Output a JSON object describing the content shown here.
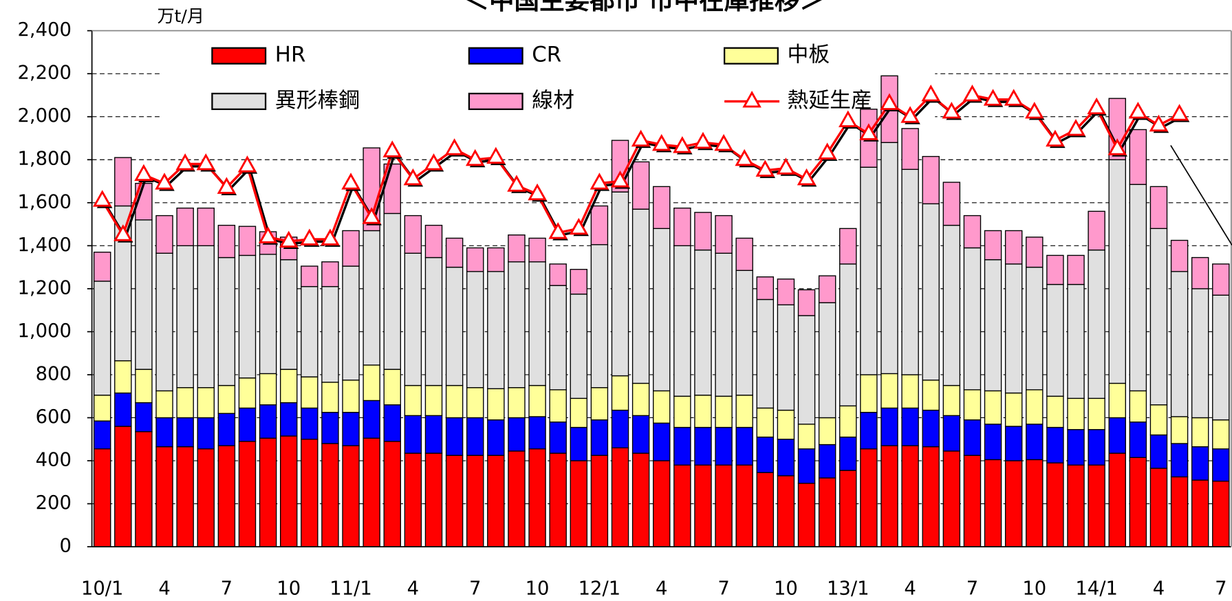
{
  "chart_data": {
    "type": "bar",
    "stacked": true,
    "title": "＜中国主要都市 市中在庫推移＞",
    "y_unit_label": "万t/月",
    "categories": [
      "10/1",
      null,
      null,
      "4",
      null,
      null,
      "7",
      null,
      null,
      "10",
      null,
      null,
      "11/1",
      null,
      null,
      "4",
      null,
      null,
      "7",
      null,
      null,
      "10",
      null,
      null,
      "12/1",
      null,
      null,
      "4",
      null,
      null,
      "7",
      null,
      null,
      "10",
      null,
      null,
      "13/1",
      null,
      null,
      "4",
      null,
      null,
      "7",
      null,
      null,
      "10",
      null,
      null,
      "14/1",
      null,
      null,
      "4",
      null,
      null,
      "7"
    ],
    "ylim": [
      0,
      2400
    ],
    "yticks": [
      0,
      200,
      400,
      600,
      800,
      {
        "value": 1000,
        "label": "1,000"
      },
      {
        "value": 1200,
        "label": "1,200"
      },
      {
        "value": 1400,
        "label": "1,400"
      },
      {
        "value": 1600,
        "label": "1,600"
      },
      {
        "value": 1800,
        "label": "1,800"
      },
      {
        "value": 2000,
        "label": "2,000"
      },
      {
        "value": 2200,
        "label": "2,200"
      },
      {
        "value": 2400,
        "label": "2,400"
      }
    ],
    "grid": true,
    "legend": "top",
    "series": [
      {
        "name": "HR",
        "color": "#ff0000",
        "values": [
          455,
          560,
          535,
          465,
          465,
          455,
          470,
          490,
          505,
          515,
          500,
          480,
          470,
          505,
          490,
          435,
          435,
          425,
          425,
          425,
          445,
          455,
          435,
          400,
          425,
          460,
          435,
          400,
          380,
          380,
          380,
          380,
          345,
          330,
          295,
          320,
          355,
          455,
          470,
          470,
          465,
          445,
          425,
          405,
          400,
          405,
          390,
          380,
          380,
          435,
          415,
          365,
          325,
          310,
          305
        ]
      },
      {
        "name": "CR",
        "color": "#0000ff",
        "values": [
          130,
          155,
          135,
          135,
          135,
          145,
          150,
          155,
          155,
          155,
          145,
          145,
          155,
          175,
          170,
          175,
          175,
          175,
          175,
          165,
          155,
          150,
          145,
          155,
          165,
          175,
          175,
          175,
          175,
          175,
          175,
          175,
          165,
          170,
          160,
          155,
          155,
          170,
          175,
          175,
          170,
          165,
          165,
          165,
          160,
          165,
          165,
          165,
          165,
          165,
          165,
          155,
          155,
          155,
          150
        ]
      },
      {
        "name": "中板",
        "color": "#ffff99",
        "values": [
          120,
          150,
          155,
          125,
          140,
          140,
          130,
          140,
          145,
          155,
          145,
          140,
          150,
          165,
          165,
          140,
          140,
          150,
          140,
          145,
          140,
          145,
          150,
          135,
          150,
          160,
          150,
          150,
          145,
          150,
          145,
          150,
          135,
          135,
          115,
          125,
          145,
          175,
          160,
          155,
          140,
          140,
          140,
          155,
          155,
          160,
          145,
          145,
          145,
          160,
          145,
          140,
          125,
          135,
          135
        ]
      },
      {
        "name": "異形棒鋼",
        "color": "#e0e0e0",
        "values": [
          530,
          720,
          695,
          640,
          660,
          660,
          595,
          570,
          555,
          510,
          420,
          445,
          530,
          625,
          725,
          615,
          595,
          550,
          540,
          545,
          585,
          575,
          485,
          485,
          665,
          855,
          810,
          755,
          700,
          675,
          665,
          580,
          505,
          490,
          505,
          535,
          660,
          965,
          1075,
          955,
          820,
          745,
          660,
          610,
          600,
          570,
          520,
          530,
          690,
          1040,
          960,
          820,
          675,
          600,
          580
        ]
      },
      {
        "name": "線材",
        "color": "#ff99cc",
        "values": [
          135,
          225,
          170,
          175,
          175,
          175,
          150,
          135,
          105,
          105,
          95,
          115,
          165,
          385,
          230,
          175,
          150,
          135,
          110,
          110,
          125,
          110,
          100,
          115,
          180,
          240,
          220,
          195,
          175,
          175,
          175,
          150,
          105,
          120,
          120,
          125,
          165,
          270,
          310,
          190,
          220,
          200,
          150,
          135,
          155,
          140,
          135,
          135,
          180,
          285,
          255,
          195,
          145,
          145,
          145
        ]
      },
      {
        "name": "熱延生産",
        "type": "line",
        "color": "#ff0000",
        "values": [
          1610,
          1450,
          1730,
          1690,
          1780,
          1780,
          1670,
          1770,
          1440,
          1420,
          1430,
          1430,
          1690,
          1530,
          1840,
          1710,
          1780,
          1850,
          1800,
          1810,
          1680,
          1640,
          1460,
          1480,
          1690,
          1700,
          1890,
          1870,
          1860,
          1880,
          1870,
          1800,
          1750,
          1760,
          1710,
          1830,
          1980,
          1920,
          2060,
          2000,
          2100,
          2020,
          2100,
          2080,
          2080,
          2020,
          1890,
          1940,
          2040,
          1850,
          2020,
          1960,
          2010,
          null,
          null
        ]
      }
    ]
  }
}
